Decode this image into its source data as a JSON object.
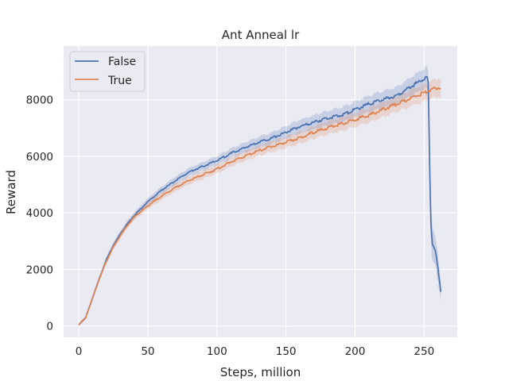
{
  "chart_data": {
    "type": "line",
    "title": "Ant Anneal lr",
    "xlabel": "Steps, million",
    "ylabel": "Reward",
    "xlim": [
      -11,
      274
    ],
    "ylim": [
      -400,
      9900
    ],
    "xticks": [
      0,
      50,
      100,
      150,
      200,
      250
    ],
    "yticks": [
      0,
      2000,
      4000,
      6000,
      8000
    ],
    "xtick_labels": [
      "0",
      "50",
      "100",
      "150",
      "200",
      "250"
    ],
    "ytick_labels": [
      "0",
      "2000",
      "4000",
      "6000",
      "8000"
    ],
    "grid": true,
    "legend_position": "top-left",
    "background": "#eaeaf2",
    "series": [
      {
        "name": "False",
        "color": "#4c72b0",
        "x": [
          0,
          5,
          10,
          15,
          20,
          25,
          30,
          35,
          40,
          45,
          50,
          60,
          70,
          80,
          90,
          100,
          110,
          120,
          130,
          140,
          150,
          160,
          170,
          180,
          190,
          200,
          210,
          220,
          230,
          240,
          245,
          250,
          252,
          253,
          254,
          255,
          256,
          258,
          260,
          262
        ],
        "y": [
          50,
          300,
          1000,
          1700,
          2350,
          2850,
          3250,
          3600,
          3900,
          4150,
          4400,
          4800,
          5150,
          5450,
          5650,
          5850,
          6100,
          6300,
          6500,
          6650,
          6850,
          7050,
          7200,
          7350,
          7450,
          7650,
          7850,
          8000,
          8150,
          8450,
          8600,
          8750,
          8800,
          8600,
          5500,
          3500,
          2900,
          2700,
          2000,
          1200
        ],
        "band_width": [
          40,
          60,
          80,
          90,
          100,
          110,
          110,
          110,
          120,
          120,
          120,
          130,
          140,
          150,
          150,
          160,
          170,
          180,
          190,
          200,
          220,
          240,
          250,
          260,
          270,
          280,
          290,
          300,
          310,
          330,
          340,
          360,
          380,
          400,
          600,
          700,
          600,
          500,
          500,
          300
        ]
      },
      {
        "name": "True",
        "color": "#dd8452",
        "x": [
          0,
          5,
          10,
          15,
          20,
          25,
          30,
          35,
          40,
          45,
          50,
          60,
          70,
          80,
          90,
          100,
          110,
          120,
          130,
          140,
          150,
          160,
          170,
          180,
          190,
          200,
          210,
          220,
          230,
          240,
          250,
          255,
          262
        ],
        "y": [
          50,
          300,
          1000,
          1700,
          2300,
          2800,
          3200,
          3550,
          3850,
          4050,
          4250,
          4600,
          4900,
          5150,
          5350,
          5550,
          5800,
          6000,
          6200,
          6350,
          6500,
          6650,
          6850,
          7000,
          7150,
          7300,
          7450,
          7650,
          7850,
          8050,
          8250,
          8350,
          8450
        ],
        "band_width": [
          40,
          60,
          80,
          90,
          100,
          100,
          110,
          110,
          110,
          120,
          120,
          130,
          140,
          140,
          150,
          150,
          160,
          170,
          180,
          190,
          200,
          210,
          220,
          230,
          240,
          250,
          260,
          270,
          280,
          290,
          300,
          320,
          330
        ]
      }
    ]
  }
}
